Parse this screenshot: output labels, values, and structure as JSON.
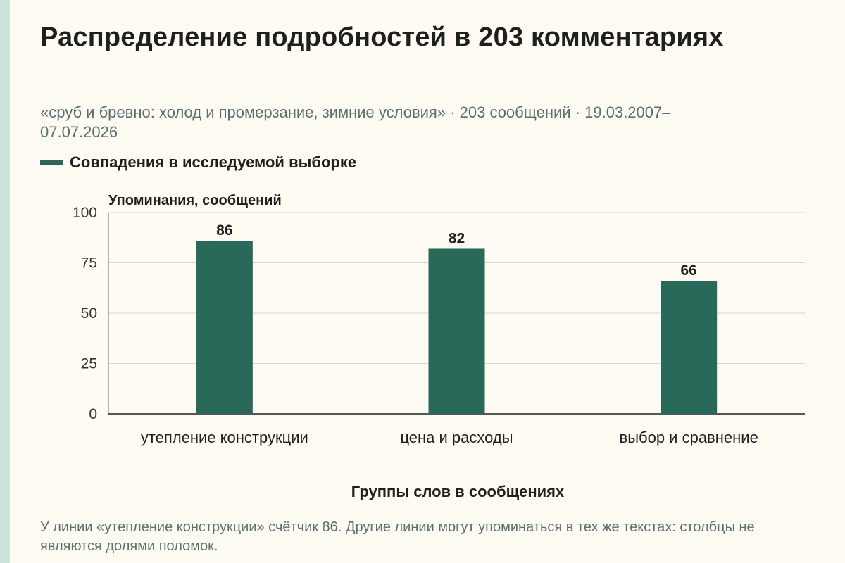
{
  "title": "Распределение подробностей в 203 комментариях",
  "subtitle": "«сруб и бревно: холод и промерзание, зимние условия» · 203 сообщений · 19.03.2007–07.07.2026",
  "footnote": "У линии «утепление конструкции» счётчик 86. Другие линии могут упоминаться в тех же текстах: столбцы не являются долями поломок.",
  "colors": {
    "bar": "#28695a",
    "background": "#fdfbf2",
    "accent_stripe": "#cfe3dc",
    "grid": "#d9d9d0",
    "muted_text": "#5a716b"
  },
  "chart_data": {
    "type": "bar",
    "title": "Распределение подробностей в 203 комментариях",
    "xlabel": "Группы слов в сообщениях",
    "ylabel": "Упоминания, сообщений",
    "categories": [
      "утепление конструкции",
      "цена и расходы",
      "выбор и сравнение"
    ],
    "series": [
      {
        "name": "Совпадения в исследуемой выборке",
        "values": [
          86,
          82,
          66
        ]
      }
    ],
    "ylim": [
      0,
      100
    ],
    "yticks": [
      0,
      25,
      50,
      75,
      100
    ],
    "grid": true,
    "legend": "top-left",
    "data_labels": true
  }
}
